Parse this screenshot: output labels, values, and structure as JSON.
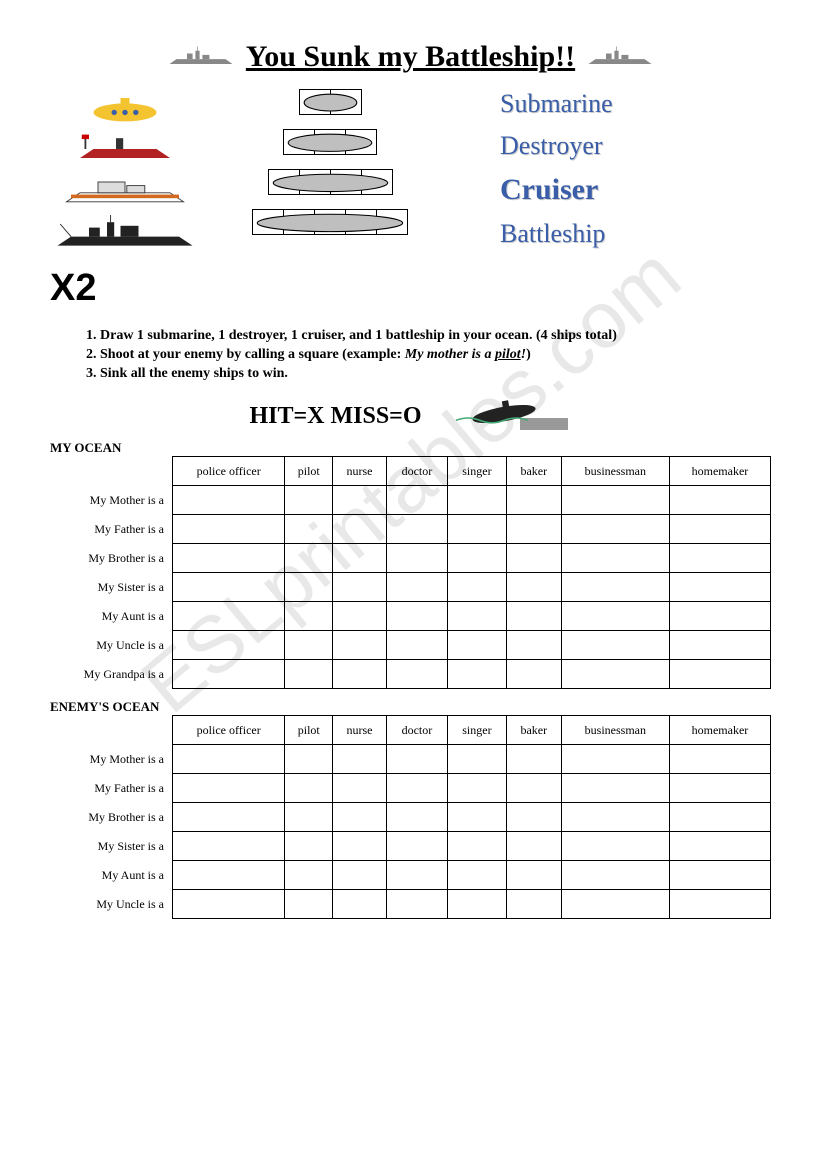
{
  "title": "You Sunk my Battleship!!",
  "watermark": "ESLprintables.com",
  "ship_types": [
    {
      "name": "Submarine",
      "cells": 2,
      "label_fontsize": 26
    },
    {
      "name": "Destroyer",
      "cells": 3,
      "label_fontsize": 26
    },
    {
      "name": "Cruiser",
      "cells": 4,
      "label_fontsize": 30
    },
    {
      "name": "Battleship",
      "cells": 5,
      "label_fontsize": 26
    }
  ],
  "multiplier": "X2",
  "instructions": [
    {
      "n": "1",
      "text_pre": "Draw 1 submarine, 1 destroyer, 1 cruiser, and 1 battleship in your ocean. (4 ships total)"
    },
    {
      "n": "2",
      "text_pre": "Shoot at your enemy by calling a square (example: ",
      "example_prefix": "My mother is a ",
      "example_underlined": "pilot",
      "example_suffix": "!",
      "text_post": ")"
    },
    {
      "n": "3",
      "text_pre": "Sink all the enemy ships to win."
    }
  ],
  "hitmiss": "HIT=X   MISS=O",
  "grid": {
    "columns": [
      "police officer",
      "pilot",
      "nurse",
      "doctor",
      "singer",
      "baker",
      "businessman",
      "homemaker"
    ],
    "rows_my": [
      "My Mother is a",
      "My Father is a",
      "My Brother is a",
      "My Sister is a",
      "My Aunt is a",
      "My Uncle is a",
      "My Grandpa is a"
    ],
    "rows_enemy": [
      "My Mother is a",
      "My Father is a",
      "My Brother is a",
      "My Sister is a",
      "My Aunt is a",
      "My Uncle is a"
    ]
  },
  "labels": {
    "my_ocean": "MY OCEAN",
    "enemy_ocean": "ENEMY'S OCEAN"
  },
  "colors": {
    "ship_fill": "#bfbfbf",
    "ship_label": "#3a5ea8",
    "watermark": "#e8e8e8",
    "border": "#000000",
    "background": "#ffffff"
  }
}
